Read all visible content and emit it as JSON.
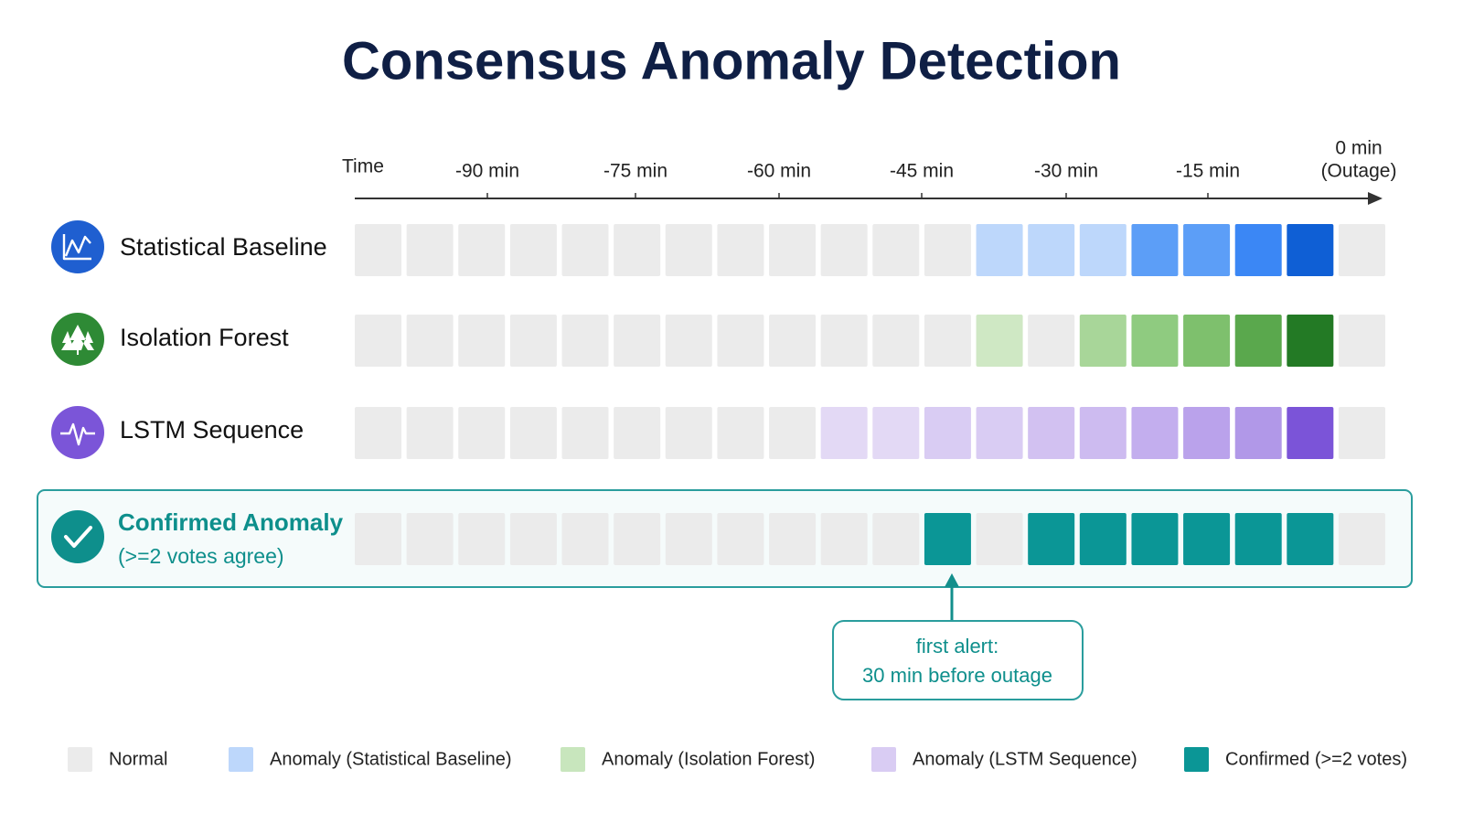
{
  "title": "Consensus Anomaly Detection",
  "timeline": {
    "label": "Time",
    "ticks": [
      "-90 min",
      "-75 min",
      "-60 min",
      "-45 min",
      "-30 min",
      "-15 min"
    ],
    "end_label": [
      "0 min",
      "(Outage)"
    ]
  },
  "rows": [
    {
      "label": "Statistical Baseline",
      "icon_color": "#1f5fd0",
      "cells": [
        "#ebebeb",
        "#ebebeb",
        "#ebebeb",
        "#ebebeb",
        "#ebebeb",
        "#ebebeb",
        "#ebebeb",
        "#ebebeb",
        "#ebebeb",
        "#ebebeb",
        "#ebebeb",
        "#ebebeb",
        "#bdd7fb",
        "#bdd7fb",
        "#bdd7fb",
        "#5c9ef7",
        "#5c9ef7",
        "#3b87f5",
        "#0f5fd5",
        "#ebebeb"
      ]
    },
    {
      "label": "Isolation Forest",
      "icon_color": "#2e8a35",
      "cells": [
        "#ebebeb",
        "#ebebeb",
        "#ebebeb",
        "#ebebeb",
        "#ebebeb",
        "#ebebeb",
        "#ebebeb",
        "#ebebeb",
        "#ebebeb",
        "#ebebeb",
        "#ebebeb",
        "#ebebeb",
        "#cfe8c4",
        "#ebebeb",
        "#a8d699",
        "#8fcb80",
        "#7ec06d",
        "#5aa84d",
        "#237a25",
        "#ebebeb"
      ]
    },
    {
      "label": "LSTM Sequence",
      "icon_color": "#7b55d8",
      "cells": [
        "#ebebeb",
        "#ebebeb",
        "#ebebeb",
        "#ebebeb",
        "#ebebeb",
        "#ebebeb",
        "#ebebeb",
        "#ebebeb",
        "#ebebeb",
        "#e3d9f5",
        "#e3d9f5",
        "#d9ccf3",
        "#d9ccf3",
        "#d2c1f1",
        "#cdbbf0",
        "#c3aeee",
        "#baa2eb",
        "#b198e8",
        "#7b54d8",
        "#ebebeb"
      ]
    }
  ],
  "confirmed": {
    "label": [
      "Confirmed Anomaly",
      "(>=2 votes agree)"
    ],
    "icon_color": "#0e8f8c",
    "cells": [
      "#ebebeb",
      "#ebebeb",
      "#ebebeb",
      "#ebebeb",
      "#ebebeb",
      "#ebebeb",
      "#ebebeb",
      "#ebebeb",
      "#ebebeb",
      "#ebebeb",
      "#ebebeb",
      "#0b9696",
      "#ebebeb",
      "#0b9696",
      "#0b9696",
      "#0b9696",
      "#0b9696",
      "#0b9696",
      "#0b9696",
      "#ebebeb"
    ]
  },
  "callout": [
    "first alert:",
    "30 min before outage"
  ],
  "legend": [
    {
      "label": "Normal",
      "color": "#ebebeb"
    },
    {
      "label": "Anomaly (Statistical Baseline)",
      "color": "#bdd7fb"
    },
    {
      "label": "Anomaly (Isolation Forest)",
      "color": "#c8e6bd"
    },
    {
      "label": "Anomaly (LSTM Sequence)",
      "color": "#d9ccf3"
    },
    {
      "label": "Confirmed (>=2 votes)",
      "color": "#0b9696"
    }
  ]
}
